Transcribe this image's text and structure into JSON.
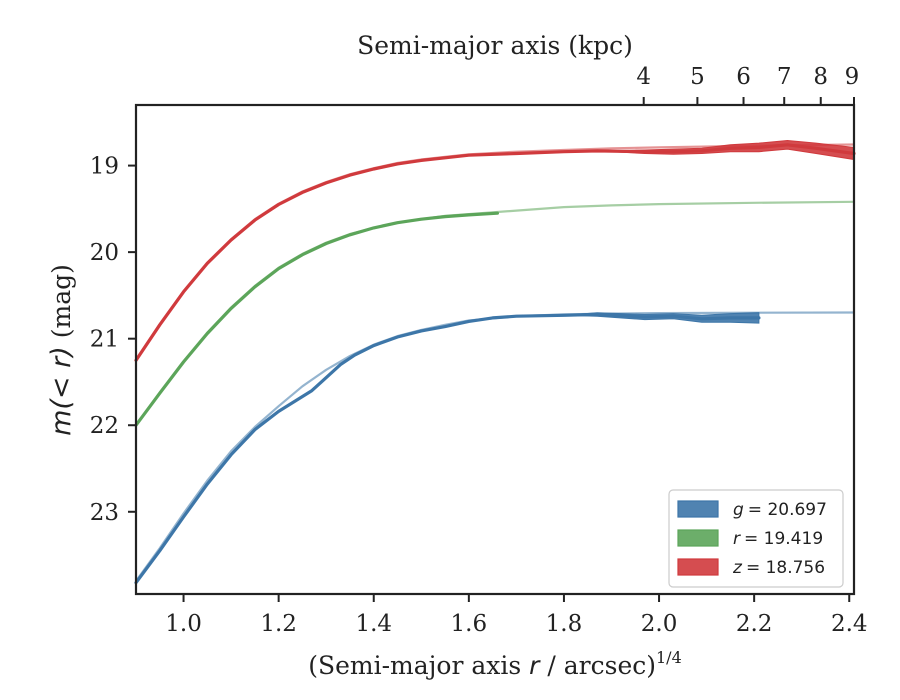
{
  "chart_data": {
    "type": "line",
    "title": "",
    "xlabel": "(Semi-major axis r / arcsec)",
    "xlabel_var": "r",
    "xlabel_pre": "(Semi-major axis ",
    "xlabel_post": " / arcsec)",
    "xlabel_exp": "1/4",
    "ylabel_var": "m(< r)",
    "ylabel_unit": "(mag)",
    "top_xlabel": "Semi-major axis (kpc)",
    "xlim": [
      0.9,
      2.41
    ],
    "ylim": [
      23.95,
      18.3
    ],
    "y_inverted": true,
    "grid": false,
    "legend_position": "lower-right",
    "x_ticks": [
      1.0,
      1.2,
      1.4,
      1.6,
      1.8,
      2.0,
      2.2,
      2.4
    ],
    "x_tick_labels": [
      "1.0",
      "1.2",
      "1.4",
      "1.6",
      "1.8",
      "2.0",
      "2.2",
      "2.4"
    ],
    "y_ticks": [
      19,
      20,
      21,
      22,
      23
    ],
    "y_tick_labels": [
      "19",
      "20",
      "21",
      "22",
      "23"
    ],
    "top_ticks": [
      4,
      5,
      6,
      7,
      8,
      9
    ],
    "top_tick_labels": [
      "4",
      "5",
      "6",
      "7",
      "8",
      "9"
    ],
    "series": [
      {
        "name": "g = 20.697",
        "legend_var": "g",
        "legend_val": "= 20.697",
        "color": "#3d76a8",
        "model": [
          [
            0.9,
            23.8
          ],
          [
            0.95,
            23.42
          ],
          [
            1.0,
            23.02
          ],
          [
            1.05,
            22.64
          ],
          [
            1.1,
            22.3
          ],
          [
            1.15,
            22.02
          ],
          [
            1.2,
            21.78
          ],
          [
            1.25,
            21.55
          ],
          [
            1.3,
            21.36
          ],
          [
            1.35,
            21.2
          ],
          [
            1.4,
            21.07
          ],
          [
            1.45,
            20.97
          ],
          [
            1.5,
            20.9
          ],
          [
            1.55,
            20.84
          ],
          [
            1.6,
            20.79
          ],
          [
            1.7,
            20.74
          ],
          [
            1.8,
            20.72
          ],
          [
            1.9,
            20.71
          ],
          [
            2.0,
            20.705
          ],
          [
            2.2,
            20.7
          ],
          [
            2.41,
            20.697
          ]
        ],
        "data": [
          [
            0.9,
            23.82
          ],
          [
            0.95,
            23.45
          ],
          [
            1.0,
            23.06
          ],
          [
            1.05,
            22.68
          ],
          [
            1.1,
            22.34
          ],
          [
            1.15,
            22.05
          ],
          [
            1.2,
            21.84
          ],
          [
            1.27,
            21.6
          ],
          [
            1.33,
            21.3
          ],
          [
            1.36,
            21.19
          ],
          [
            1.4,
            21.08
          ],
          [
            1.45,
            20.98
          ],
          [
            1.5,
            20.91
          ],
          [
            1.55,
            20.86
          ],
          [
            1.6,
            20.8
          ],
          [
            1.65,
            20.76
          ],
          [
            1.7,
            20.74
          ],
          [
            1.8,
            20.73
          ],
          [
            1.87,
            20.72
          ],
          [
            1.97,
            20.75
          ],
          [
            2.03,
            20.74
          ],
          [
            2.09,
            20.77
          ],
          [
            2.15,
            20.76
          ],
          [
            2.21,
            20.76
          ]
        ],
        "data_band": [
          0,
          0,
          0,
          0,
          0,
          0,
          0,
          0,
          0,
          0,
          0,
          0,
          0,
          0,
          0,
          0,
          0,
          0,
          0.02,
          0.03,
          0.03,
          0.04,
          0.05,
          0.06
        ]
      },
      {
        "name": "r = 19.419",
        "legend_var": "r",
        "legend_val": "= 19.419",
        "color": "#5ca55a",
        "model": [
          [
            0.9,
            22.0
          ],
          [
            0.95,
            21.62
          ],
          [
            1.0,
            21.26
          ],
          [
            1.05,
            20.93
          ],
          [
            1.1,
            20.64
          ],
          [
            1.15,
            20.39
          ],
          [
            1.2,
            20.18
          ],
          [
            1.25,
            20.02
          ],
          [
            1.3,
            19.89
          ],
          [
            1.35,
            19.79
          ],
          [
            1.4,
            19.72
          ],
          [
            1.45,
            19.66
          ],
          [
            1.5,
            19.62
          ],
          [
            1.55,
            19.58
          ],
          [
            1.6,
            19.56
          ],
          [
            1.7,
            19.52
          ],
          [
            1.8,
            19.48
          ],
          [
            1.9,
            19.46
          ],
          [
            2.0,
            19.445
          ],
          [
            2.2,
            19.43
          ],
          [
            2.41,
            19.419
          ]
        ],
        "data": [
          [
            0.9,
            22.0
          ],
          [
            0.95,
            21.63
          ],
          [
            1.0,
            21.27
          ],
          [
            1.05,
            20.94
          ],
          [
            1.1,
            20.65
          ],
          [
            1.15,
            20.4
          ],
          [
            1.2,
            20.19
          ],
          [
            1.25,
            20.03
          ],
          [
            1.3,
            19.9
          ],
          [
            1.35,
            19.8
          ],
          [
            1.4,
            19.72
          ],
          [
            1.45,
            19.66
          ],
          [
            1.5,
            19.62
          ],
          [
            1.55,
            19.59
          ],
          [
            1.6,
            19.57
          ],
          [
            1.66,
            19.55
          ]
        ]
      },
      {
        "name": "z = 18.756",
        "legend_var": "z",
        "legend_val": "= 18.756",
        "color": "#d03a3d",
        "model": [
          [
            0.9,
            21.25
          ],
          [
            0.95,
            20.83
          ],
          [
            1.0,
            20.45
          ],
          [
            1.05,
            20.12
          ],
          [
            1.1,
            19.85
          ],
          [
            1.15,
            19.62
          ],
          [
            1.2,
            19.44
          ],
          [
            1.25,
            19.3
          ],
          [
            1.3,
            19.19
          ],
          [
            1.35,
            19.1
          ],
          [
            1.4,
            19.03
          ],
          [
            1.45,
            18.97
          ],
          [
            1.5,
            18.93
          ],
          [
            1.55,
            18.9
          ],
          [
            1.6,
            18.87
          ],
          [
            1.7,
            18.84
          ],
          [
            1.8,
            18.82
          ],
          [
            1.9,
            18.8
          ],
          [
            2.0,
            18.79
          ],
          [
            2.2,
            18.77
          ],
          [
            2.41,
            18.756
          ]
        ],
        "data": [
          [
            0.9,
            21.25
          ],
          [
            0.95,
            20.84
          ],
          [
            1.0,
            20.46
          ],
          [
            1.05,
            20.13
          ],
          [
            1.1,
            19.86
          ],
          [
            1.15,
            19.63
          ],
          [
            1.2,
            19.45
          ],
          [
            1.25,
            19.31
          ],
          [
            1.3,
            19.2
          ],
          [
            1.35,
            19.11
          ],
          [
            1.4,
            19.04
          ],
          [
            1.45,
            18.98
          ],
          [
            1.5,
            18.94
          ],
          [
            1.55,
            18.91
          ],
          [
            1.6,
            18.88
          ],
          [
            1.7,
            18.86
          ],
          [
            1.8,
            18.84
          ],
          [
            1.87,
            18.83
          ],
          [
            1.97,
            18.84
          ],
          [
            2.03,
            18.84
          ],
          [
            2.09,
            18.83
          ],
          [
            2.15,
            18.8
          ],
          [
            2.21,
            18.79
          ],
          [
            2.27,
            18.76
          ],
          [
            2.33,
            18.8
          ],
          [
            2.41,
            18.86
          ]
        ],
        "data_band": [
          0,
          0,
          0,
          0,
          0,
          0,
          0,
          0,
          0,
          0,
          0,
          0,
          0,
          0,
          0,
          0,
          0,
          0,
          0.02,
          0.03,
          0.03,
          0.04,
          0.05,
          0.05,
          0.06,
          0.07
        ]
      }
    ]
  }
}
